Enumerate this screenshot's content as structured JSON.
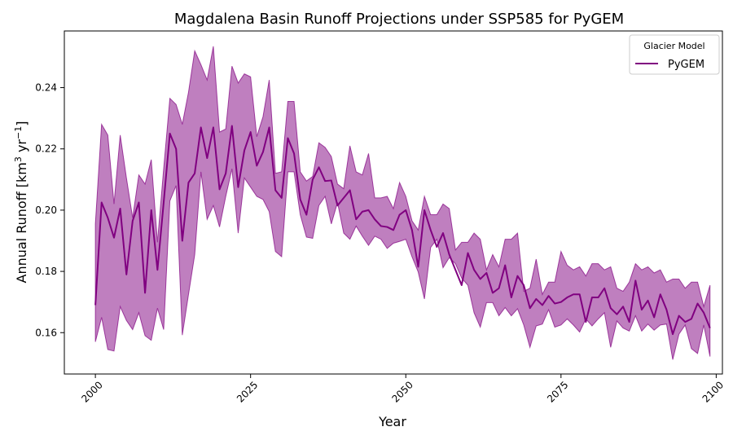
{
  "chart_data": {
    "type": "line",
    "title": "Magdalena Basin Runoff Projections under SSP585 for PyGEM",
    "xlabel": "Year",
    "ylabel_main": "Annual Runoff [km",
    "ylabel_sup1": "3",
    "ylabel_mid": " yr",
    "ylabel_sup2": "−1",
    "ylabel_end": "]",
    "xlim": [
      1995,
      2101
    ],
    "ylim": [
      0.1465,
      0.2585
    ],
    "xticks": [
      2000,
      2025,
      2050,
      2075,
      2100
    ],
    "yticks": [
      0.16,
      0.18,
      0.2,
      0.22,
      0.24
    ],
    "ytick_labels": [
      "0.16",
      "0.18",
      "0.20",
      "0.22",
      "0.24"
    ],
    "legend": {
      "title": "Glacier Model",
      "position": "top-right"
    },
    "series": [
      {
        "name": "PyGEM",
        "color": "#800080",
        "fill_color": "#800080",
        "fill_opacity": 0.5,
        "x": [
          2000,
          2001,
          2002,
          2003,
          2004,
          2005,
          2006,
          2007,
          2008,
          2009,
          2010,
          2011,
          2012,
          2013,
          2014,
          2015,
          2016,
          2017,
          2018,
          2019,
          2020,
          2021,
          2022,
          2023,
          2024,
          2025,
          2026,
          2027,
          2028,
          2029,
          2030,
          2031,
          2032,
          2033,
          2034,
          2035,
          2036,
          2037,
          2038,
          2039,
          2040,
          2041,
          2042,
          2043,
          2044,
          2045,
          2046,
          2047,
          2048,
          2049,
          2050,
          2051,
          2052,
          2053,
          2054,
          2055,
          2056,
          2057,
          2058,
          2059,
          2060,
          2061,
          2062,
          2063,
          2064,
          2065,
          2066,
          2067,
          2068,
          2069,
          2070,
          2071,
          2072,
          2073,
          2074,
          2075,
          2076,
          2077,
          2078,
          2079,
          2080,
          2081,
          2082,
          2083,
          2084,
          2085,
          2086,
          2087,
          2088,
          2089,
          2090,
          2091,
          2092,
          2093,
          2094,
          2095,
          2096,
          2097,
          2098,
          2099
        ],
        "mean": [
          0.169,
          0.2025,
          0.1975,
          0.191,
          0.2005,
          0.179,
          0.1965,
          0.2025,
          0.173,
          0.2,
          0.1805,
          0.2025,
          0.225,
          0.22,
          0.19,
          0.209,
          0.212,
          0.227,
          0.217,
          0.227,
          0.2068,
          0.212,
          0.2275,
          0.2075,
          0.2195,
          0.2255,
          0.2145,
          0.219,
          0.227,
          0.2065,
          0.204,
          0.2235,
          0.2185,
          0.2035,
          0.1985,
          0.21,
          0.214,
          0.2095,
          0.2097,
          0.2015,
          0.204,
          0.2065,
          0.197,
          0.1995,
          0.2,
          0.197,
          0.1948,
          0.1945,
          0.1935,
          0.1985,
          0.2,
          0.1935,
          0.1815,
          0.2,
          0.1935,
          0.188,
          0.1925,
          0.1855,
          0.1805,
          0.1755,
          0.186,
          0.1805,
          0.1775,
          0.1795,
          0.173,
          0.1745,
          0.182,
          0.1715,
          0.1785,
          0.1755,
          0.168,
          0.171,
          0.169,
          0.172,
          0.1695,
          0.17,
          0.1715,
          0.1725,
          0.1725,
          0.1635,
          0.1715,
          0.1715,
          0.1745,
          0.168,
          0.166,
          0.1685,
          0.1635,
          0.177,
          0.1675,
          0.1705,
          0.165,
          0.1725,
          0.1675,
          0.1595,
          0.1655,
          0.1635,
          0.1645,
          0.1695,
          0.1665,
          0.1615
        ],
        "upper": [
          0.1955,
          0.228,
          0.2245,
          0.202,
          0.2245,
          0.2105,
          0.1975,
          0.2115,
          0.2085,
          0.2165,
          0.1895,
          0.2135,
          0.2365,
          0.2345,
          0.228,
          0.2385,
          0.252,
          0.2475,
          0.2425,
          0.2535,
          0.2255,
          0.2265,
          0.247,
          0.2415,
          0.2445,
          0.2435,
          0.224,
          0.2305,
          0.2425,
          0.212,
          0.2125,
          0.2355,
          0.2355,
          0.2125,
          0.2095,
          0.211,
          0.222,
          0.2205,
          0.2175,
          0.2085,
          0.207,
          0.221,
          0.2125,
          0.2115,
          0.2185,
          0.204,
          0.204,
          0.2045,
          0.2005,
          0.209,
          0.2045,
          0.1965,
          0.1935,
          0.2045,
          0.1985,
          0.1985,
          0.202,
          0.2005,
          0.187,
          0.1895,
          0.1895,
          0.1925,
          0.1905,
          0.1805,
          0.1855,
          0.1815,
          0.1905,
          0.1905,
          0.1925,
          0.1735,
          0.1745,
          0.184,
          0.1725,
          0.1765,
          0.1765,
          0.1865,
          0.182,
          0.1805,
          0.1815,
          0.1785,
          0.1825,
          0.1825,
          0.1805,
          0.1815,
          0.1745,
          0.1735,
          0.1765,
          0.1825,
          0.1805,
          0.1815,
          0.1795,
          0.1805,
          0.1765,
          0.1775,
          0.1775,
          0.1745,
          0.1765,
          0.1765,
          0.1685,
          0.1755
        ],
        "lower": [
          0.157,
          0.165,
          0.1545,
          0.154,
          0.1685,
          0.164,
          0.161,
          0.1665,
          0.159,
          0.1575,
          0.168,
          0.161,
          0.203,
          0.208,
          0.1592,
          0.1725,
          0.1855,
          0.2125,
          0.197,
          0.2015,
          0.1945,
          0.2045,
          0.2135,
          0.1925,
          0.2105,
          0.2075,
          0.2045,
          0.2035,
          0.1995,
          0.1865,
          0.1848,
          0.2125,
          0.2125,
          0.1985,
          0.1912,
          0.1908,
          0.2015,
          0.2045,
          0.1955,
          0.2025,
          0.1925,
          0.1905,
          0.1948,
          0.1915,
          0.1885,
          0.1915,
          0.1905,
          0.1875,
          0.1892,
          0.1898,
          0.1905,
          0.1848,
          0.1798,
          0.171,
          0.1878,
          0.1905,
          0.1812,
          0.1845,
          0.1825,
          0.1778,
          0.1755,
          0.1665,
          0.1618,
          0.1698,
          0.1698,
          0.1655,
          0.1682,
          0.1655,
          0.1678,
          0.1625,
          0.1552,
          0.1622,
          0.1628,
          0.1675,
          0.1618,
          0.1625,
          0.1645,
          0.1625,
          0.1602,
          0.1645,
          0.1622,
          0.1645,
          0.1665,
          0.1552,
          0.1638,
          0.1615,
          0.1605,
          0.1655,
          0.1605,
          0.1628,
          0.1608,
          0.1625,
          0.1628,
          0.1512,
          0.1595,
          0.1625,
          0.1548,
          0.1532,
          0.1625,
          0.1522
        ]
      }
    ]
  }
}
